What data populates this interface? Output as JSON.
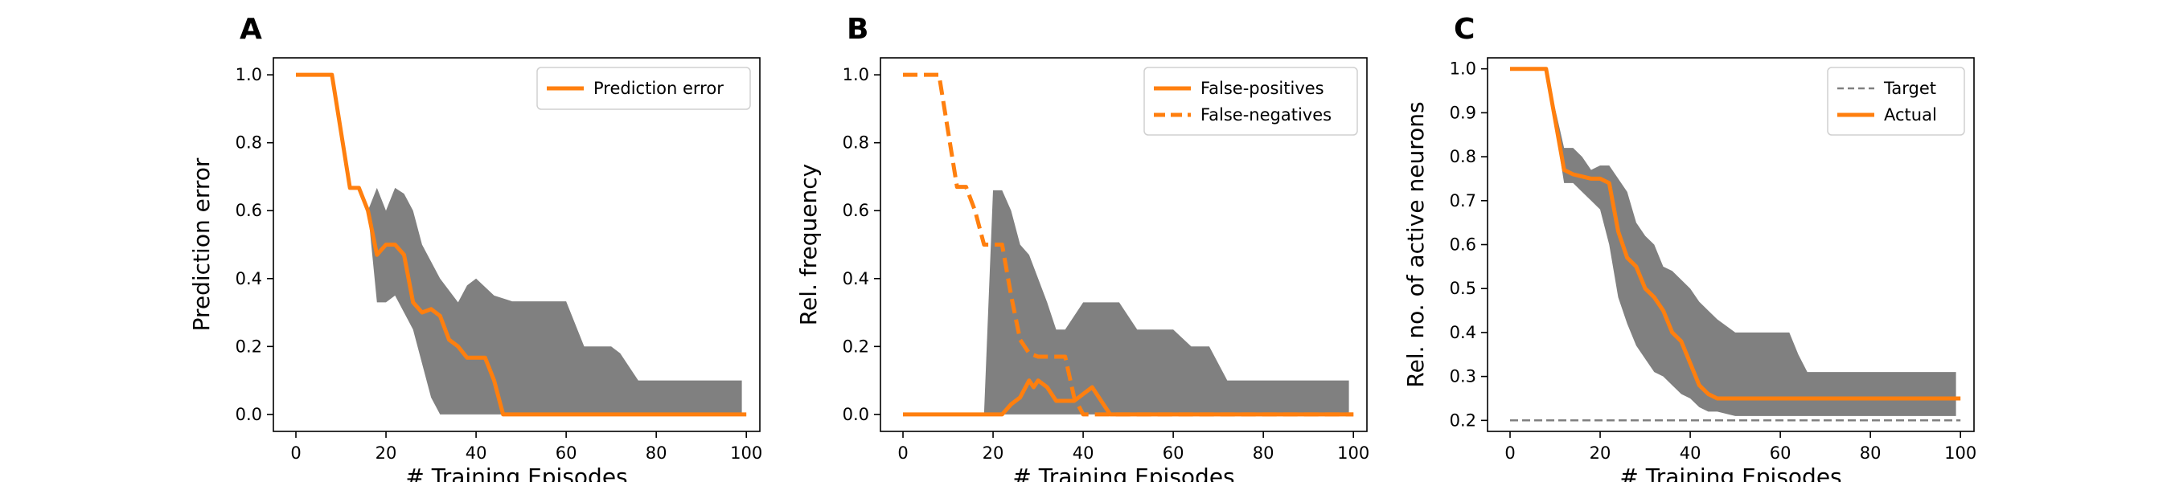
{
  "chart_data": [
    {
      "type": "line",
      "panel_label": "A",
      "xlabel": "# Training Episodes",
      "ylabel": "Prediction error",
      "xlim": [
        -5,
        103
      ],
      "ylim": [
        -0.05,
        1.05
      ],
      "xticks": [
        "0",
        "20",
        "40",
        "60",
        "80",
        "100"
      ],
      "yticks": [
        "0.0",
        "0.2",
        "0.4",
        "0.6",
        "0.8",
        "1.0"
      ],
      "legend_position": "top-right",
      "colors": {
        "line": "#ff7f0e",
        "band": "#808080"
      },
      "series": [
        {
          "name": "Prediction error",
          "style": "solid",
          "x": [
            0,
            8,
            12,
            14,
            16,
            18,
            20,
            22,
            24,
            26,
            28,
            30,
            32,
            34,
            36,
            38,
            40,
            42,
            44,
            46,
            48,
            60,
            80,
            100
          ],
          "y": [
            1.0,
            1.0,
            0.667,
            0.667,
            0.6,
            0.47,
            0.5,
            0.5,
            0.47,
            0.33,
            0.3,
            0.31,
            0.29,
            0.22,
            0.2,
            0.167,
            0.167,
            0.167,
            0.1,
            0.0,
            0.0,
            0.0,
            0.0,
            0.0
          ]
        }
      ],
      "band": {
        "x": [
          0,
          8,
          12,
          14,
          16,
          18,
          20,
          22,
          24,
          26,
          28,
          30,
          32,
          36,
          38,
          40,
          44,
          48,
          52,
          60,
          64,
          70,
          72,
          76,
          80,
          90,
          99
        ],
        "upper": [
          1.0,
          1.0,
          0.667,
          0.667,
          0.6,
          0.667,
          0.6,
          0.667,
          0.65,
          0.6,
          0.5,
          0.45,
          0.4,
          0.33,
          0.38,
          0.4,
          0.35,
          0.333,
          0.333,
          0.333,
          0.2,
          0.2,
          0.18,
          0.1,
          0.1,
          0.1,
          0.1
        ],
        "lower": [
          1.0,
          1.0,
          0.667,
          0.667,
          0.6,
          0.33,
          0.33,
          0.35,
          0.3,
          0.25,
          0.15,
          0.05,
          0.0,
          0.0,
          0.0,
          0.0,
          0.0,
          0.0,
          0.0,
          0.0,
          0.0,
          0.0,
          0.0,
          0.0,
          0.0,
          0.0,
          0.0
        ]
      }
    },
    {
      "type": "line",
      "panel_label": "B",
      "xlabel": "# Training Episodes",
      "ylabel": "Rel. frequency",
      "xlim": [
        -5,
        103
      ],
      "ylim": [
        -0.05,
        1.05
      ],
      "xticks": [
        "0",
        "20",
        "40",
        "60",
        "80",
        "100"
      ],
      "yticks": [
        "0.0",
        "0.2",
        "0.4",
        "0.6",
        "0.8",
        "1.0"
      ],
      "legend_position": "top-right",
      "colors": {
        "line": "#ff7f0e",
        "band": "#808080"
      },
      "series": [
        {
          "name": "False-positives",
          "style": "solid",
          "x": [
            0,
            20,
            22,
            24,
            26,
            28,
            29,
            30,
            32,
            34,
            36,
            38,
            40,
            42,
            44,
            46,
            48,
            60,
            80,
            100
          ],
          "y": [
            0.0,
            0.0,
            0.0,
            0.03,
            0.05,
            0.1,
            0.08,
            0.1,
            0.08,
            0.04,
            0.04,
            0.04,
            0.06,
            0.08,
            0.04,
            0.0,
            0.0,
            0.0,
            0.0,
            0.0
          ]
        },
        {
          "name": "False-negatives",
          "style": "dashed",
          "x": [
            0,
            8,
            12,
            14,
            16,
            18,
            20,
            22,
            24,
            26,
            28,
            30,
            32,
            34,
            36,
            38,
            40,
            42,
            44,
            60,
            80,
            100
          ],
          "y": [
            1.0,
            1.0,
            0.67,
            0.67,
            0.6,
            0.5,
            0.5,
            0.5,
            0.35,
            0.22,
            0.18,
            0.17,
            0.17,
            0.17,
            0.17,
            0.05,
            0.0,
            0.0,
            0.0,
            0.0,
            0.0,
            0.0
          ]
        }
      ],
      "band": {
        "x": [
          0,
          18,
          20,
          22,
          24,
          26,
          28,
          30,
          32,
          34,
          36,
          40,
          44,
          48,
          52,
          56,
          60,
          64,
          68,
          72,
          76,
          80,
          90,
          99
        ],
        "upper": [
          0.0,
          0.0,
          0.66,
          0.66,
          0.6,
          0.5,
          0.47,
          0.4,
          0.33,
          0.25,
          0.25,
          0.33,
          0.33,
          0.33,
          0.25,
          0.25,
          0.25,
          0.2,
          0.2,
          0.1,
          0.1,
          0.1,
          0.1,
          0.1
        ],
        "lower": [
          0.0,
          0.0,
          0.0,
          0.0,
          0.0,
          0.0,
          0.0,
          0.0,
          0.0,
          0.0,
          0.0,
          0.0,
          0.0,
          0.0,
          0.0,
          0.0,
          0.0,
          0.0,
          0.0,
          0.0,
          0.0,
          0.0,
          0.0,
          0.0
        ]
      }
    },
    {
      "type": "line",
      "panel_label": "C",
      "xlabel": "# Training Episodes",
      "ylabel": "Rel. no. of active neurons",
      "xlim": [
        -5,
        103
      ],
      "ylim": [
        0.175,
        1.025
      ],
      "xticks": [
        "0",
        "20",
        "40",
        "60",
        "80",
        "100"
      ],
      "yticks": [
        "0.2",
        "0.3",
        "0.4",
        "0.5",
        "0.6",
        "0.7",
        "0.8",
        "0.9",
        "1.0"
      ],
      "legend_position": "top-right",
      "colors": {
        "line": "#ff7f0e",
        "target": "#808080",
        "band": "#808080"
      },
      "series": [
        {
          "name": "Target",
          "style": "dashed",
          "color": "#808080",
          "x": [
            0,
            100
          ],
          "y": [
            0.2,
            0.2
          ]
        },
        {
          "name": "Actual",
          "style": "solid",
          "x": [
            0,
            8,
            12,
            14,
            16,
            18,
            20,
            22,
            24,
            26,
            28,
            30,
            32,
            34,
            36,
            38,
            40,
            42,
            44,
            46,
            48,
            60,
            80,
            100
          ],
          "y": [
            1.0,
            1.0,
            0.77,
            0.76,
            0.755,
            0.75,
            0.75,
            0.74,
            0.63,
            0.57,
            0.55,
            0.5,
            0.48,
            0.45,
            0.4,
            0.38,
            0.33,
            0.28,
            0.26,
            0.25,
            0.25,
            0.25,
            0.25,
            0.25
          ]
        }
      ],
      "band": {
        "x": [
          0,
          8,
          12,
          14,
          16,
          18,
          20,
          22,
          24,
          26,
          28,
          30,
          32,
          34,
          36,
          38,
          40,
          42,
          44,
          46,
          50,
          54,
          58,
          62,
          64,
          66,
          70,
          80,
          90,
          99
        ],
        "upper": [
          1.0,
          1.0,
          0.82,
          0.82,
          0.8,
          0.77,
          0.78,
          0.78,
          0.75,
          0.72,
          0.65,
          0.62,
          0.6,
          0.55,
          0.54,
          0.52,
          0.5,
          0.47,
          0.45,
          0.43,
          0.4,
          0.4,
          0.4,
          0.4,
          0.35,
          0.31,
          0.31,
          0.31,
          0.31,
          0.31
        ],
        "lower": [
          1.0,
          1.0,
          0.74,
          0.74,
          0.72,
          0.7,
          0.68,
          0.6,
          0.48,
          0.42,
          0.37,
          0.34,
          0.31,
          0.3,
          0.28,
          0.26,
          0.25,
          0.23,
          0.22,
          0.22,
          0.21,
          0.21,
          0.21,
          0.21,
          0.21,
          0.21,
          0.21,
          0.21,
          0.21,
          0.21
        ]
      }
    }
  ]
}
